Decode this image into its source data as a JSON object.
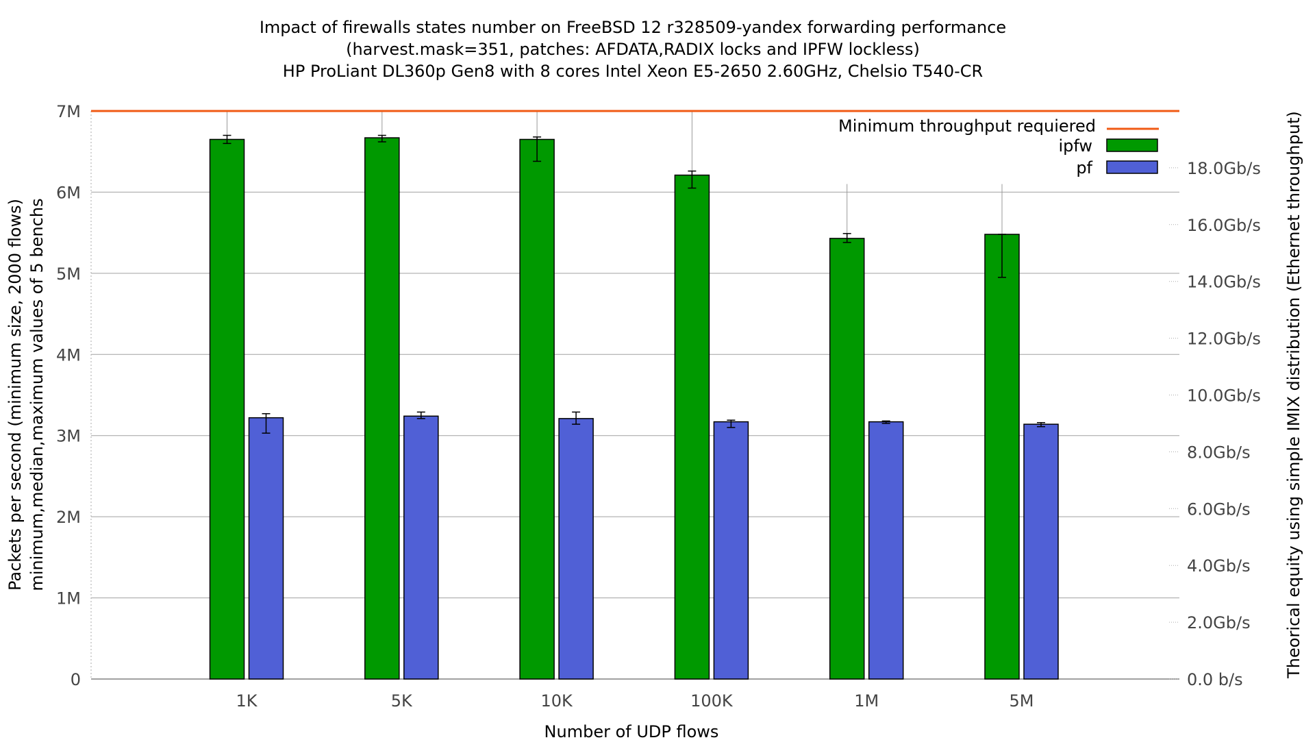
{
  "chart_data": {
    "type": "bar",
    "title_lines": [
      "Impact of firewalls states number on FreeBSD 12 r328509-yandex forwarding performance",
      "(harvest.mask=351, patches: AFDATA,RADIX locks and IPFW lockless)",
      "HP ProLiant DL360p Gen8 with 8 cores Intel Xeon E5-2650 2.60GHz, Chelsio T540-CR"
    ],
    "xlabel": "Number of UDP flows",
    "ylabel_lines": [
      "Packets per second (minimum size, 2000 flows)",
      "minimum,median,maximum values of 5 benchs"
    ],
    "y2label": "Theorical equity using simple IMIX distribution (Ethernet throughput)",
    "categories": [
      "1K",
      "5K",
      "10K",
      "100K",
      "1M",
      "5M"
    ],
    "ylim": [
      0,
      7000000
    ],
    "yticks": [
      0,
      1000000,
      2000000,
      3000000,
      4000000,
      5000000,
      6000000,
      7000000
    ],
    "yticklabels": [
      "0",
      "1M",
      "2M",
      "3M",
      "4M",
      "5M",
      "6M",
      "7M"
    ],
    "y2ticks": [
      0,
      2,
      4,
      6,
      8,
      10,
      12,
      14,
      16,
      18
    ],
    "y2ticklabels": [
      "0.0 b/s",
      "2.0Gb/s",
      "4.0Gb/s",
      "6.0Gb/s",
      "8.0Gb/s",
      "10.0Gb/s",
      "12.0Gb/s",
      "14.0Gb/s",
      "16.0Gb/s",
      "18.0Gb/s"
    ],
    "y2max_gbps": 20.0,
    "grid": true,
    "legend_position": "top-right",
    "threshold": {
      "name": "Minimum throughput requiered",
      "value": 7000000,
      "color": "#f05a14"
    },
    "series": [
      {
        "name": "ipfw",
        "color": "#009900",
        "values": [
          6650000,
          6670000,
          6650000,
          6210000,
          5430000,
          5480000
        ],
        "min": [
          6600000,
          6620000,
          6380000,
          6050000,
          5380000,
          4950000
        ],
        "max": [
          6700000,
          6700000,
          6680000,
          6260000,
          5490000,
          5480000
        ]
      },
      {
        "name": "pf",
        "color": "#5060d6",
        "values": [
          3220000,
          3240000,
          3210000,
          3170000,
          3170000,
          3140000
        ],
        "min": [
          3030000,
          3210000,
          3140000,
          3100000,
          3150000,
          3110000
        ],
        "max": [
          3270000,
          3290000,
          3290000,
          3190000,
          3180000,
          3160000
        ]
      }
    ],
    "whiskers_thin": [
      {
        "category": "1K",
        "max": 7000000
      },
      {
        "category": "5K",
        "max": 7000000
      },
      {
        "category": "10K",
        "max": 7000000
      },
      {
        "category": "100K",
        "max": 7000000
      },
      {
        "category": "1M",
        "max": 6100000
      },
      {
        "category": "5M",
        "max": 6100000
      }
    ]
  }
}
